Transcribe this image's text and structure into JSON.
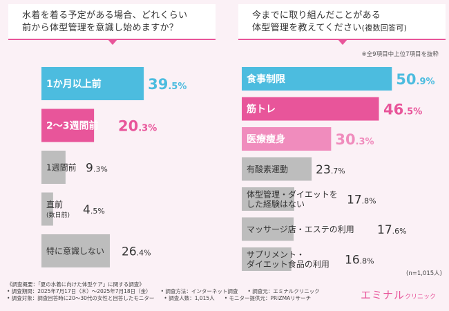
{
  "chart_data": [
    {
      "type": "bar",
      "title": "水着を着る予定がある場合、どれくらい前から体型管理を意識し始めますか？",
      "categories": [
        "1か月以上前",
        "2～3週間前",
        "1週間前",
        "直前（数日前）",
        "特に意識しない"
      ],
      "values": [
        39.5,
        20.3,
        9.3,
        4.5,
        26.4
      ],
      "colors": [
        "#4cbcdf",
        "#e8559a",
        "#bdbdbd",
        "#bdbdbd",
        "#bdbdbd"
      ],
      "xlim": [
        0,
        40
      ]
    },
    {
      "type": "bar",
      "title": "今までに取り組んだことがある体型管理を教えてください（複数回答可）",
      "note": "※全9項目中上位7項目を抜粋",
      "n_label": "(n=1,015人)",
      "categories": [
        "食事制限",
        "筋トレ",
        "医療痩身",
        "有酸素運動",
        "体型管理・ダイエットをした経験はない",
        "マッサージ店・エステの利用",
        "サプリメント・ダイエット食品の利用"
      ],
      "values": [
        50.9,
        46.5,
        30.3,
        23.7,
        17.8,
        17.6,
        16.8
      ],
      "colors": [
        "#4cbcdf",
        "#e8559a",
        "#f08cbd",
        "#bdbdbd",
        "#bdbdbd",
        "#bdbdbd",
        "#bdbdbd"
      ],
      "xlim": [
        0,
        52
      ]
    }
  ],
  "left_title_lines": [
    "水着を着る予定がある場合、どれくらい",
    "前から体型管理を意識し始めますか？"
  ],
  "right_title_lines": [
    "今までに取り組んだことがある",
    "体型管理を教えてください"
  ],
  "right_title_suffix": "(複数回答可)",
  "left_label_lines": [
    [
      "1か月以上前"
    ],
    [
      "2～3週間前"
    ],
    [
      "1週間前"
    ],
    [
      "直前",
      "(数日前)"
    ],
    [
      "特に意識しない"
    ]
  ],
  "right_label_lines": [
    [
      "食事制限"
    ],
    [
      "筋トレ"
    ],
    [
      "医療痩身"
    ],
    [
      "有酸素運動"
    ],
    [
      "体型管理・ダイエットを",
      "した経験はない"
    ],
    [
      "マッサージ店・エステの利用"
    ],
    [
      "サプリメント・",
      "ダイエット食品の利用"
    ]
  ],
  "footer": {
    "line1": "《調査概要：「夏の水着に向けた体型ケア」に関する調査》",
    "line2a": "• 調査期間：2025年7月17日（木）～2025年7月18日（金）",
    "line2b": "• 調査方法：インターネット調査",
    "line2c": "• 調査元：エミナルクリニック",
    "line3a": "• 調査対象：調査回答時に20～30代の女性と回答したモニター",
    "line3b": "• 調査人数：1,015人",
    "line3c": "• モニター提供元：PRIZMAリサーチ"
  },
  "logo": {
    "main": "エミナル",
    "sub": "クリニック"
  }
}
